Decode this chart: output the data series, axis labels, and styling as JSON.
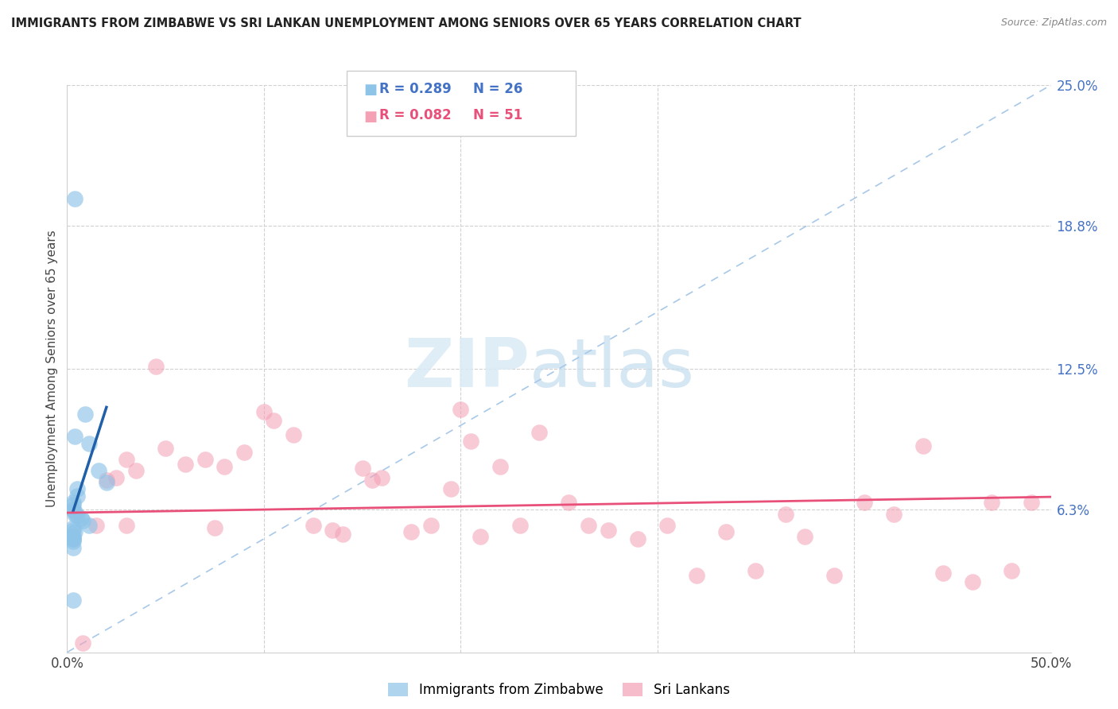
{
  "title": "IMMIGRANTS FROM ZIMBABWE VS SRI LANKAN UNEMPLOYMENT AMONG SENIORS OVER 65 YEARS CORRELATION CHART",
  "source": "Source: ZipAtlas.com",
  "ylabel": "Unemployment Among Seniors over 65 years",
  "xlim": [
    0,
    50
  ],
  "ylim": [
    0,
    25
  ],
  "ytick_labels_right": [
    "6.3%",
    "12.5%",
    "18.8%",
    "25.0%"
  ],
  "ytick_positions_right": [
    6.3,
    12.5,
    18.8,
    25.0
  ],
  "blue_color": "#8ec4e8",
  "pink_color": "#f4a0b5",
  "blue_line_color": "#2060a8",
  "pink_line_color": "#e8507a",
  "dash_color": "#a8c8e8",
  "legend_R_blue": "R = 0.289",
  "legend_N_blue": "N = 26",
  "legend_R_pink": "R = 0.082",
  "legend_N_pink": "N = 51",
  "legend_label_blue": "Immigrants from Zimbabwe",
  "legend_label_pink": "Sri Lankans",
  "watermark_zip": "ZIP",
  "watermark_atlas": "atlas",
  "blue_scatter_x": [
    0.4,
    0.4,
    0.9,
    1.1,
    1.6,
    2.0,
    0.5,
    0.5,
    0.3,
    0.3,
    0.3,
    0.4,
    0.4,
    0.5,
    0.7,
    0.8,
    1.1,
    0.3,
    0.3,
    0.4,
    0.3,
    0.3,
    0.3,
    0.3,
    0.3,
    0.3
  ],
  "blue_scatter_y": [
    20.0,
    9.5,
    10.5,
    9.2,
    8.0,
    7.5,
    7.2,
    6.9,
    6.6,
    6.5,
    6.3,
    6.2,
    6.1,
    6.0,
    5.9,
    5.8,
    5.6,
    5.5,
    5.4,
    5.3,
    5.1,
    5.0,
    5.0,
    4.9,
    4.6,
    2.3
  ],
  "pink_scatter_x": [
    4.5,
    3.0,
    3.5,
    5.0,
    6.0,
    7.0,
    8.0,
    9.0,
    10.0,
    10.5,
    11.5,
    12.5,
    13.5,
    14.0,
    15.0,
    15.5,
    16.0,
    17.5,
    18.5,
    19.5,
    20.0,
    21.0,
    22.0,
    23.0,
    24.0,
    25.5,
    26.5,
    27.5,
    29.0,
    30.5,
    32.0,
    33.5,
    35.0,
    36.5,
    37.5,
    39.0,
    40.5,
    42.0,
    43.5,
    44.5,
    46.0,
    47.0,
    48.0,
    49.0,
    1.5,
    2.0,
    2.5,
    3.0,
    7.5,
    20.5,
    0.8
  ],
  "pink_scatter_y": [
    12.6,
    8.5,
    8.0,
    9.0,
    8.3,
    8.5,
    8.2,
    8.8,
    10.6,
    10.2,
    9.6,
    5.6,
    5.4,
    5.2,
    8.1,
    7.6,
    7.7,
    5.3,
    5.6,
    7.2,
    10.7,
    5.1,
    8.2,
    5.6,
    9.7,
    6.6,
    5.6,
    5.4,
    5.0,
    5.6,
    3.4,
    5.3,
    3.6,
    6.1,
    5.1,
    3.4,
    6.6,
    6.1,
    9.1,
    3.5,
    3.1,
    6.6,
    3.6,
    6.6,
    5.6,
    7.6,
    7.7,
    5.6,
    5.5,
    9.3,
    0.4
  ],
  "blue_trend_x": [
    0.3,
    2.0
  ],
  "blue_trend_y": [
    6.2,
    10.8
  ],
  "pink_trend_x": [
    0,
    50
  ],
  "pink_trend_y": [
    6.15,
    6.85
  ]
}
